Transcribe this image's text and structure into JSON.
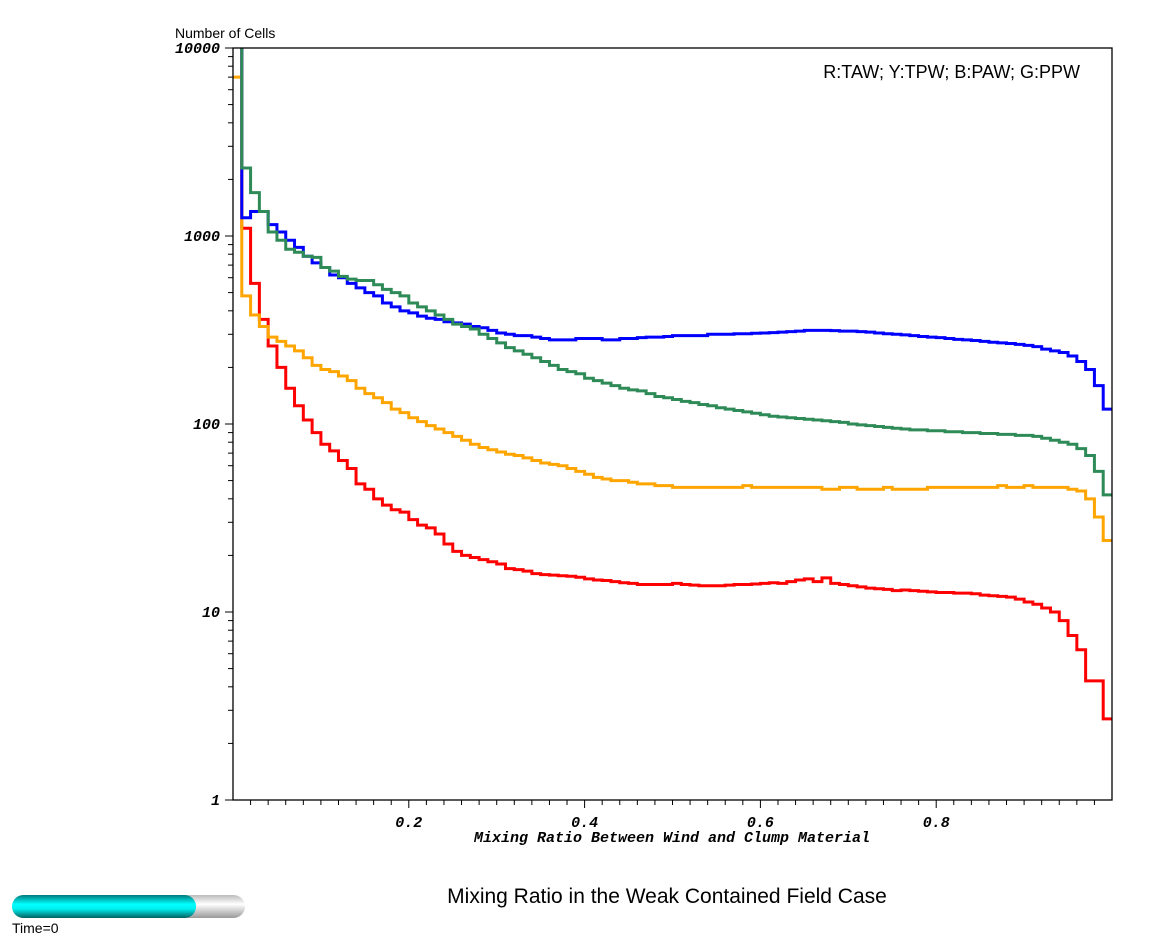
{
  "chart_data": {
    "type": "line",
    "style": "step",
    "title": "Mixing Ratio in the Weak Contained Field Case",
    "xlabel": "Mixing Ratio Between Wind and Clump Material",
    "ylabel": "Number of Cells",
    "legend_text": "R:TAW; Y:TPW; B:PAW; G:PPW",
    "legend_position": "top-right",
    "xlim": [
      0,
      1
    ],
    "ylim": [
      1,
      10000
    ],
    "yscale": "log",
    "xticks": [
      "0.2",
      "0.4",
      "0.6",
      "0.8"
    ],
    "xtick_values": [
      0.2,
      0.4,
      0.6,
      0.8
    ],
    "yticks": [
      "10000",
      "1000",
      "100",
      "10",
      "1"
    ],
    "ytick_values": [
      10000,
      1000,
      100,
      10,
      1
    ],
    "bin_width": 0.01,
    "series": [
      {
        "name": "TAW",
        "color": "#ff0000",
        "values": [
          20000,
          1100,
          560,
          360,
          260,
          200,
          155,
          125,
          105,
          90,
          78,
          72,
          64,
          58,
          48,
          45,
          40,
          37,
          35,
          34,
          31,
          29,
          28,
          26,
          23,
          21,
          20,
          19.5,
          19,
          18.5,
          18,
          17,
          16.8,
          16.5,
          16,
          15.8,
          15.7,
          15.6,
          15.5,
          15.3,
          15,
          14.8,
          14.7,
          14.5,
          14.3,
          14.2,
          14,
          14,
          14,
          14,
          14.2,
          14,
          13.9,
          13.8,
          13.8,
          13.8,
          13.9,
          14,
          14,
          14.1,
          14.2,
          14.3,
          14.2,
          14.5,
          14.8,
          15,
          14.5,
          15.2,
          14.2,
          14,
          13.8,
          13.6,
          13.4,
          13.3,
          13.2,
          13,
          13.1,
          13,
          12.9,
          12.8,
          12.7,
          12.7,
          12.6,
          12.6,
          12.5,
          12.3,
          12.2,
          12.1,
          12,
          11.7,
          11.3,
          11,
          10.5,
          10,
          9,
          7.5,
          6.3,
          4.3,
          4.3,
          2.7
        ]
      },
      {
        "name": "TPW",
        "color": "#ffa500",
        "values": [
          7000,
          480,
          380,
          330,
          290,
          275,
          260,
          245,
          225,
          205,
          195,
          190,
          180,
          170,
          155,
          145,
          138,
          130,
          120,
          115,
          108,
          103,
          98,
          94,
          90,
          86,
          82,
          78,
          75,
          73,
          71,
          69,
          68,
          66,
          64,
          62,
          61,
          60,
          58,
          56,
          54,
          52,
          51,
          50,
          50,
          49,
          48,
          48,
          47,
          47,
          46,
          46,
          46,
          46,
          46,
          46,
          46,
          46,
          47,
          46,
          46,
          46,
          46,
          46,
          46,
          46,
          46,
          45,
          45,
          46,
          46,
          45,
          45,
          45,
          46,
          45,
          45,
          45,
          45,
          46,
          46,
          46,
          46,
          46,
          46,
          46,
          46,
          47,
          46,
          46,
          47,
          46,
          46,
          46,
          46,
          45,
          44,
          40,
          32,
          24
        ]
      },
      {
        "name": "PAW",
        "color": "#0000ff",
        "values": [
          20000,
          1250,
          1350,
          1350,
          1150,
          1050,
          950,
          870,
          780,
          720,
          680,
          620,
          600,
          560,
          530,
          500,
          480,
          440,
          420,
          400,
          390,
          375,
          365,
          360,
          350,
          345,
          340,
          330,
          325,
          315,
          305,
          300,
          295,
          295,
          290,
          285,
          280,
          280,
          280,
          285,
          285,
          285,
          280,
          280,
          285,
          285,
          288,
          290,
          290,
          292,
          295,
          295,
          295,
          295,
          300,
          300,
          300,
          302,
          302,
          304,
          305,
          306,
          308,
          310,
          312,
          315,
          315,
          315,
          314,
          312,
          312,
          310,
          308,
          305,
          302,
          300,
          298,
          295,
          292,
          290,
          288,
          285,
          282,
          280,
          278,
          275,
          272,
          270,
          268,
          265,
          262,
          258,
          250,
          245,
          240,
          230,
          215,
          195,
          160,
          120
        ]
      },
      {
        "name": "PPW",
        "color": "#2e8b57",
        "values": [
          20000,
          2300,
          1700,
          1350,
          1050,
          950,
          850,
          820,
          780,
          770,
          680,
          650,
          610,
          590,
          580,
          580,
          550,
          520,
          500,
          480,
          440,
          420,
          400,
          380,
          360,
          340,
          330,
          320,
          300,
          285,
          270,
          255,
          245,
          235,
          225,
          215,
          205,
          195,
          190,
          185,
          175,
          170,
          165,
          160,
          155,
          152,
          150,
          145,
          140,
          138,
          135,
          132,
          130,
          127,
          125,
          122,
          120,
          118,
          116,
          114,
          112,
          110,
          109,
          108,
          107,
          106,
          105,
          104,
          103,
          102,
          100,
          99,
          98,
          97,
          96,
          95,
          94,
          93,
          93,
          92,
          92,
          91,
          91,
          90,
          90,
          89,
          89,
          88,
          88,
          87,
          87,
          86,
          84,
          82,
          80,
          78,
          74,
          68,
          56,
          42
        ]
      }
    ]
  },
  "time_bar": {
    "label": "Time=0",
    "progress": 0.79,
    "fill_color": "#00ffff"
  }
}
